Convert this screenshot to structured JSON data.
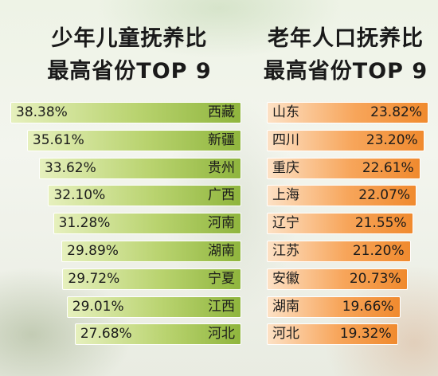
{
  "left_title": {
    "line1": "少年儿童抚养比",
    "line2": "最高省份TOP 9"
  },
  "right_title": {
    "line1": "老年人口抚养比",
    "line2": "最高省份TOP 9"
  },
  "colors": {
    "left_bar": "#a6c651",
    "right_bar": "#f29a45"
  },
  "chart_data": [
    {
      "type": "bar",
      "title": "少年儿童抚养比 最高省份TOP 9",
      "categories": [
        "西藏",
        "新疆",
        "贵州",
        "广西",
        "河南",
        "湖南",
        "宁夏",
        "江西",
        "河北"
      ],
      "values": [
        38.38,
        35.61,
        33.62,
        32.1,
        31.28,
        29.89,
        29.72,
        29.01,
        27.68
      ],
      "labels": [
        "38.38%",
        "35.61%",
        "33.62%",
        "32.10%",
        "31.28%",
        "29.89%",
        "29.72%",
        "29.01%",
        "27.68%"
      ],
      "unit": "%",
      "orientation": "horizontal",
      "grid": false
    },
    {
      "type": "bar",
      "title": "老年人口抚养比 最高省份TOP 9",
      "categories": [
        "山东",
        "四川",
        "重庆",
        "上海",
        "辽宁",
        "江苏",
        "安徽",
        "湖南",
        "河北"
      ],
      "values": [
        23.82,
        23.2,
        22.61,
        22.07,
        21.55,
        21.2,
        20.73,
        19.66,
        19.32
      ],
      "labels": [
        "23.82%",
        "23.20%",
        "22.61%",
        "22.07%",
        "21.55%",
        "21.20%",
        "20.73%",
        "19.66%",
        "19.32%"
      ],
      "unit": "%",
      "orientation": "horizontal",
      "grid": false
    }
  ]
}
